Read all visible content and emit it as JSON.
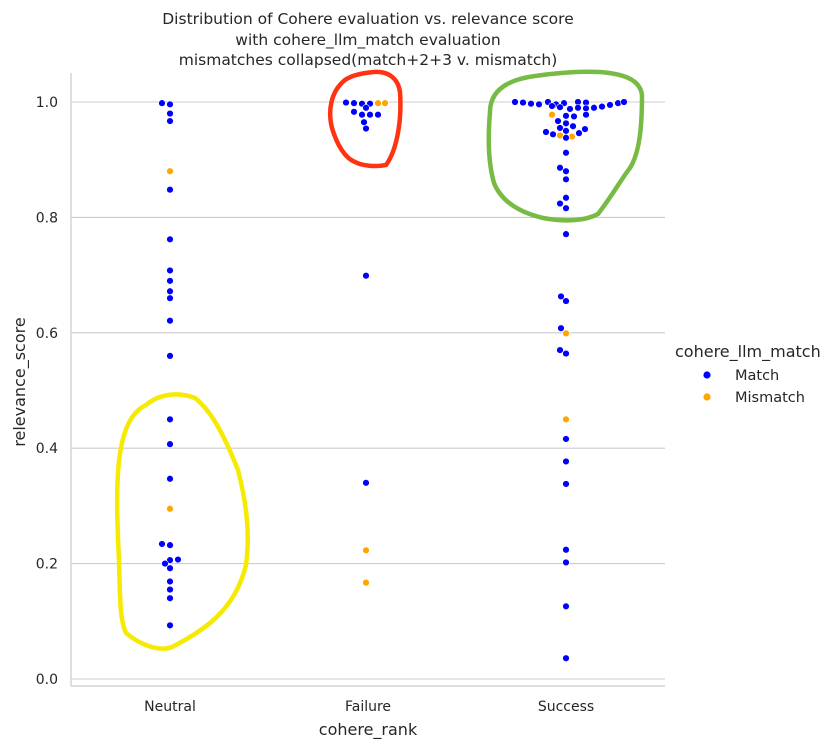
{
  "chart_data": {
    "type": "scatter",
    "subtype": "swarm",
    "title_lines": [
      "Distribution of Cohere evaluation vs. relevance score",
      "with cohere_llm_match evaluation",
      "mismatches collapsed(match+2+3 v. mismatch)"
    ],
    "xlabel": "cohere_rank",
    "ylabel": "relevance_score",
    "categories": [
      "Neutral",
      "Failure",
      "Success"
    ],
    "ylim": [
      -0.01,
      1.05
    ],
    "yticks": [
      0.0,
      0.2,
      0.4,
      0.6,
      0.8,
      1.0
    ],
    "ytick_labels": [
      "0.0",
      "0.2",
      "0.4",
      "0.6",
      "0.8",
      "1.0"
    ],
    "grid": "horizontal",
    "legend": {
      "title": "cohere_llm_match",
      "placement": "right",
      "entries": [
        {
          "label": "Match",
          "color": "#0000ff"
        },
        {
          "label": "Mismatch",
          "color": "#ffa500"
        }
      ]
    },
    "series": [
      {
        "category": "Neutral",
        "points": [
          {
            "y": 0.998,
            "dx": -8,
            "match": true
          },
          {
            "y": 0.996,
            "dx": 0,
            "match": true
          },
          {
            "y": 0.98,
            "dx": 0,
            "match": true
          },
          {
            "y": 0.967,
            "dx": 0,
            "match": true
          },
          {
            "y": 0.88,
            "dx": 0,
            "match": false
          },
          {
            "y": 0.848,
            "dx": 0,
            "match": true
          },
          {
            "y": 0.762,
            "dx": 0,
            "match": true
          },
          {
            "y": 0.708,
            "dx": 0,
            "match": true
          },
          {
            "y": 0.69,
            "dx": 0,
            "match": true
          },
          {
            "y": 0.672,
            "dx": 0,
            "match": true
          },
          {
            "y": 0.66,
            "dx": 0,
            "match": true
          },
          {
            "y": 0.621,
            "dx": 0,
            "match": true
          },
          {
            "y": 0.56,
            "dx": 0,
            "match": true
          },
          {
            "y": 0.45,
            "dx": 0,
            "match": true
          },
          {
            "y": 0.407,
            "dx": 0,
            "match": true
          },
          {
            "y": 0.347,
            "dx": 0,
            "match": true
          },
          {
            "y": 0.295,
            "dx": 0,
            "match": false
          },
          {
            "y": 0.234,
            "dx": -8,
            "match": true
          },
          {
            "y": 0.232,
            "dx": 0,
            "match": true
          },
          {
            "y": 0.207,
            "dx": 8,
            "match": true
          },
          {
            "y": 0.206,
            "dx": 0,
            "match": true
          },
          {
            "y": 0.2,
            "dx": -5,
            "match": true
          },
          {
            "y": 0.192,
            "dx": 0,
            "match": true
          },
          {
            "y": 0.169,
            "dx": 0,
            "match": true
          },
          {
            "y": 0.155,
            "dx": 0,
            "match": true
          },
          {
            "y": 0.14,
            "dx": 0,
            "match": true
          },
          {
            "y": 0.093,
            "dx": 0,
            "match": true
          }
        ]
      },
      {
        "category": "Failure",
        "points": [
          {
            "y": 0.999,
            "dx": -22,
            "match": true
          },
          {
            "y": 0.998,
            "dx": -14,
            "match": true
          },
          {
            "y": 0.997,
            "dx": -6,
            "match": true
          },
          {
            "y": 0.997,
            "dx": 2,
            "match": true
          },
          {
            "y": 0.998,
            "dx": 10,
            "match": false
          },
          {
            "y": 0.998,
            "dx": 17,
            "match": false
          },
          {
            "y": 0.99,
            "dx": -2,
            "match": true
          },
          {
            "y": 0.983,
            "dx": -14,
            "match": true
          },
          {
            "y": 0.978,
            "dx": -6,
            "match": true
          },
          {
            "y": 0.978,
            "dx": 2,
            "match": true
          },
          {
            "y": 0.978,
            "dx": 10,
            "match": true
          },
          {
            "y": 0.965,
            "dx": -4,
            "match": true
          },
          {
            "y": 0.954,
            "dx": -2,
            "match": true
          },
          {
            "y": 0.699,
            "dx": -2,
            "match": true
          },
          {
            "y": 0.34,
            "dx": -2,
            "match": true
          },
          {
            "y": 0.223,
            "dx": -2,
            "match": false
          },
          {
            "y": 0.167,
            "dx": -2,
            "match": false
          }
        ]
      },
      {
        "category": "Success",
        "points": [
          {
            "y": 1.0,
            "dx": -51,
            "match": true
          },
          {
            "y": 0.999,
            "dx": -43,
            "match": true
          },
          {
            "y": 0.997,
            "dx": -35,
            "match": true
          },
          {
            "y": 0.996,
            "dx": -27,
            "match": true
          },
          {
            "y": 1.0,
            "dx": -18,
            "match": true
          },
          {
            "y": 0.996,
            "dx": -10,
            "match": true
          },
          {
            "y": 0.998,
            "dx": -2,
            "match": true
          },
          {
            "y": 1.0,
            "dx": 12,
            "match": true
          },
          {
            "y": 0.999,
            "dx": 20,
            "match": true
          },
          {
            "y": 0.992,
            "dx": 36,
            "match": true
          },
          {
            "y": 0.995,
            "dx": 44,
            "match": true
          },
          {
            "y": 0.998,
            "dx": 52,
            "match": true
          },
          {
            "y": 1.0,
            "dx": 58,
            "match": true
          },
          {
            "y": 0.993,
            "dx": -14,
            "match": true
          },
          {
            "y": 0.991,
            "dx": -6,
            "match": true
          },
          {
            "y": 0.988,
            "dx": 4,
            "match": true
          },
          {
            "y": 0.99,
            "dx": 12,
            "match": true
          },
          {
            "y": 0.989,
            "dx": 20,
            "match": true
          },
          {
            "y": 0.99,
            "dx": 28,
            "match": true
          },
          {
            "y": 0.978,
            "dx": -14,
            "match": false
          },
          {
            "y": 0.976,
            "dx": 0,
            "match": true
          },
          {
            "y": 0.975,
            "dx": 8,
            "match": true
          },
          {
            "y": 0.978,
            "dx": 20,
            "match": true
          },
          {
            "y": 0.967,
            "dx": -8,
            "match": true
          },
          {
            "y": 0.963,
            "dx": 0,
            "match": true
          },
          {
            "y": 0.958,
            "dx": 7,
            "match": true
          },
          {
            "y": 0.955,
            "dx": -6,
            "match": true
          },
          {
            "y": 0.95,
            "dx": 0,
            "match": true
          },
          {
            "y": 0.948,
            "dx": -20,
            "match": true
          },
          {
            "y": 0.946,
            "dx": 13,
            "match": true
          },
          {
            "y": 0.953,
            "dx": 19,
            "match": true
          },
          {
            "y": 0.944,
            "dx": -13,
            "match": true
          },
          {
            "y": 0.942,
            "dx": -6,
            "match": false
          },
          {
            "y": 0.94,
            "dx": 6,
            "match": false
          },
          {
            "y": 0.938,
            "dx": 0,
            "match": true
          },
          {
            "y": 0.912,
            "dx": 0,
            "match": true
          },
          {
            "y": 0.886,
            "dx": -6,
            "match": true
          },
          {
            "y": 0.88,
            "dx": 0,
            "match": true
          },
          {
            "y": 0.866,
            "dx": 0,
            "match": true
          },
          {
            "y": 0.834,
            "dx": 0,
            "match": true
          },
          {
            "y": 0.824,
            "dx": -6,
            "match": true
          },
          {
            "y": 0.816,
            "dx": 0,
            "match": true
          },
          {
            "y": 0.771,
            "dx": 0,
            "match": true
          },
          {
            "y": 0.663,
            "dx": -5,
            "match": true
          },
          {
            "y": 0.655,
            "dx": 0,
            "match": true
          },
          {
            "y": 0.608,
            "dx": -5,
            "match": true
          },
          {
            "y": 0.599,
            "dx": 0,
            "match": false
          },
          {
            "y": 0.57,
            "dx": -6,
            "match": true
          },
          {
            "y": 0.564,
            "dx": 0,
            "match": true
          },
          {
            "y": 0.45,
            "dx": 0,
            "match": false
          },
          {
            "y": 0.416,
            "dx": 0,
            "match": true
          },
          {
            "y": 0.377,
            "dx": 0,
            "match": true
          },
          {
            "y": 0.338,
            "dx": 0,
            "match": true
          },
          {
            "y": 0.224,
            "dx": 0,
            "match": true
          },
          {
            "y": 0.202,
            "dx": 0,
            "match": true
          },
          {
            "y": 0.126,
            "dx": 0,
            "match": true
          },
          {
            "y": 0.036,
            "dx": 0,
            "match": true
          }
        ]
      }
    ],
    "annotations": [
      {
        "shape": "freehand-loop",
        "color": "#f5ea00",
        "around": "Neutral",
        "y_range": [
          0.05,
          0.49
        ]
      },
      {
        "shape": "freehand-loop",
        "color": "#ff3311",
        "around": "Failure",
        "y_range": [
          0.89,
          1.05
        ]
      },
      {
        "shape": "freehand-loop",
        "color": "#77bb44",
        "around": "Success",
        "y_range": [
          0.79,
          1.05
        ]
      }
    ]
  }
}
